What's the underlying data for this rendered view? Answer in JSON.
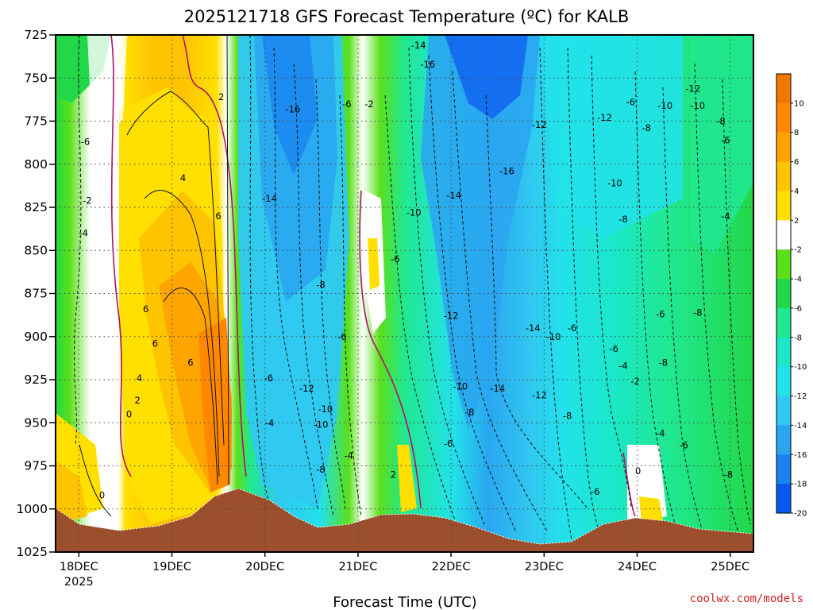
{
  "chart_data": {
    "type": "contour",
    "title": "2025121718 GFS Forecast Temperature (ºC) for KALB",
    "xlabel": "Forecast Time (UTC)",
    "ylabel": "",
    "y_axis": {
      "scale": "pressure",
      "ticks": [
        725,
        750,
        775,
        800,
        825,
        850,
        875,
        900,
        925,
        950,
        975,
        1000,
        1025
      ],
      "ylim": [
        1025,
        725
      ]
    },
    "x_axis": {
      "ticks": [
        "18DEC",
        "19DEC",
        "20DEC",
        "21DEC",
        "22DEC",
        "23DEC",
        "24DEC",
        "25DEC"
      ],
      "first_tick_year": "2025",
      "xlim": [
        "2025-12-17 18Z",
        "2025-12-25 06Z"
      ]
    },
    "colorbar": {
      "levels": [
        -20,
        -18,
        -16,
        -14,
        -12,
        -10,
        -8,
        -6,
        -4,
        -2,
        2,
        4,
        6,
        8,
        10
      ],
      "labels": [
        "10",
        "8",
        "6",
        "4",
        "2",
        "-2",
        "-4",
        "-6",
        "-8",
        "-10",
        "-12",
        "-14",
        "-16",
        "-18",
        "-20"
      ],
      "colors": [
        "#0a56f0",
        "#1a82f0",
        "#2aa6f0",
        "#30c8f0",
        "#22e2ea",
        "#1ae8c8",
        "#20e890",
        "#22d848",
        "#5ae01a",
        "#ffffff",
        "#ffe000",
        "#ffc400",
        "#ffa200",
        "#ff8800",
        "#f07800"
      ]
    },
    "contour_labels": [
      {
        "day": 18.07,
        "p": 787,
        "v": "-6"
      },
      {
        "day": 18.09,
        "p": 821,
        "v": "-2"
      },
      {
        "day": 18.05,
        "p": 840,
        "v": "-4"
      },
      {
        "day": 18.25,
        "p": 992,
        "v": "0"
      },
      {
        "day": 18.54,
        "p": 945,
        "v": "0"
      },
      {
        "day": 18.63,
        "p": 937,
        "v": "2"
      },
      {
        "day": 18.65,
        "p": 924,
        "v": "4"
      },
      {
        "day": 18.72,
        "p": 884,
        "v": "6"
      },
      {
        "day": 18.82,
        "p": 904,
        "v": "6"
      },
      {
        "day": 19.2,
        "p": 915,
        "v": "6"
      },
      {
        "day": 19.12,
        "p": 808,
        "v": "4"
      },
      {
        "day": 19.5,
        "p": 830,
        "v": "6"
      },
      {
        "day": 19.53,
        "p": 761,
        "v": "2"
      },
      {
        "day": 20.3,
        "p": 768,
        "v": "-16"
      },
      {
        "day": 20.05,
        "p": 820,
        "v": "-14"
      },
      {
        "day": 20.6,
        "p": 870,
        "v": "-8"
      },
      {
        "day": 20.83,
        "p": 900,
        "v": "-6"
      },
      {
        "day": 20.04,
        "p": 924,
        "v": "-6"
      },
      {
        "day": 20.45,
        "p": 930,
        "v": "-12"
      },
      {
        "day": 20.65,
        "p": 942,
        "v": "-10"
      },
      {
        "day": 20.6,
        "p": 951,
        "v": "-10"
      },
      {
        "day": 20.05,
        "p": 950,
        "v": "-4"
      },
      {
        "day": 20.6,
        "p": 977,
        "v": "-8"
      },
      {
        "day": 20.9,
        "p": 969,
        "v": "-4"
      },
      {
        "day": 20.88,
        "p": 765,
        "v": "-6"
      },
      {
        "day": 21.12,
        "p": 765,
        "v": "-2"
      },
      {
        "day": 21.4,
        "p": 855,
        "v": "-6"
      },
      {
        "day": 21.6,
        "p": 828,
        "v": "-10"
      },
      {
        "day": 21.75,
        "p": 742,
        "v": "-16"
      },
      {
        "day": 21.65,
        "p": 731,
        "v": "-14"
      },
      {
        "day": 22.03,
        "p": 818,
        "v": "-14"
      },
      {
        "day": 22.0,
        "p": 888,
        "v": "-12"
      },
      {
        "day": 22.1,
        "p": 929,
        "v": "-10"
      },
      {
        "day": 22.2,
        "p": 944,
        "v": "-8"
      },
      {
        "day": 21.97,
        "p": 962,
        "v": "-6"
      },
      {
        "day": 22.5,
        "p": 930,
        "v": "-14"
      },
      {
        "day": 22.6,
        "p": 804,
        "v": "-16"
      },
      {
        "day": 22.95,
        "p": 777,
        "v": "-12"
      },
      {
        "day": 22.88,
        "p": 895,
        "v": "-14"
      },
      {
        "day": 23.1,
        "p": 900,
        "v": "-10"
      },
      {
        "day": 22.95,
        "p": 934,
        "v": "-12"
      },
      {
        "day": 23.3,
        "p": 895,
        "v": "-6"
      },
      {
        "day": 23.25,
        "p": 946,
        "v": "-8"
      },
      {
        "day": 23.65,
        "p": 773,
        "v": "-12"
      },
      {
        "day": 23.76,
        "p": 811,
        "v": "-10"
      },
      {
        "day": 23.85,
        "p": 832,
        "v": "-8"
      },
      {
        "day": 23.75,
        "p": 907,
        "v": "-6"
      },
      {
        "day": 23.85,
        "p": 917,
        "v": "-4"
      },
      {
        "day": 23.93,
        "p": 764,
        "v": "-6"
      },
      {
        "day": 24.1,
        "p": 779,
        "v": "-8"
      },
      {
        "day": 24.3,
        "p": 766,
        "v": "-10"
      },
      {
        "day": 24.6,
        "p": 756,
        "v": "-12"
      },
      {
        "day": 24.65,
        "p": 766,
        "v": "-10"
      },
      {
        "day": 24.9,
        "p": 775,
        "v": "-8"
      },
      {
        "day": 24.95,
        "p": 786,
        "v": "-6"
      },
      {
        "day": 24.95,
        "p": 830,
        "v": "-4"
      },
      {
        "day": 24.65,
        "p": 886,
        "v": "-8"
      },
      {
        "day": 24.25,
        "p": 887,
        "v": "-6"
      },
      {
        "day": 24.28,
        "p": 915,
        "v": "-8"
      },
      {
        "day": 23.98,
        "p": 926,
        "v": "-2"
      },
      {
        "day": 24.25,
        "p": 956,
        "v": "-4"
      },
      {
        "day": 24.5,
        "p": 963,
        "v": "-6"
      },
      {
        "day": 24.98,
        "p": 980,
        "v": "-8"
      },
      {
        "day": 24.01,
        "p": 978,
        "v": "0"
      },
      {
        "day": 23.55,
        "p": 990,
        "v": "-6"
      },
      {
        "day": 21.38,
        "p": 980,
        "v": "2"
      }
    ]
  },
  "credit": "coolwx.com/models"
}
